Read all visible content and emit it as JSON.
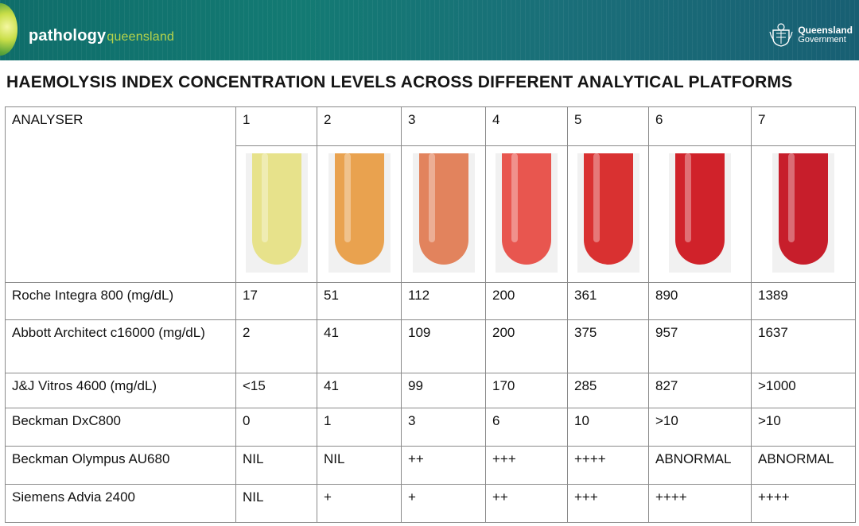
{
  "header": {
    "brand_main": "pathology",
    "brand_sub": "queensland",
    "gov_line1": "Queensland",
    "gov_line2": "Government"
  },
  "title": "HAEMOLYSIS INDEX CONCENTRATION LEVELS ACROSS DIFFERENT ANALYTICAL PLATFORMS",
  "table": {
    "corner_label": "ANALYSER",
    "levels": [
      "1",
      "2",
      "3",
      "4",
      "5",
      "6",
      "7"
    ],
    "tube_colors": [
      "#e7e28b",
      "#e9a24f",
      "#e2835d",
      "#e8564f",
      "#d93131",
      "#d0222a",
      "#c71e2b"
    ],
    "rows": [
      {
        "name": "Roche Integra 800 (mg/dL)",
        "values": [
          "17",
          "51",
          "112",
          "200",
          "361",
          "890",
          "1389"
        ]
      },
      {
        "name": "Abbott Architect c16000 (mg/dL)",
        "values": [
          "2",
          "41",
          "109",
          "200",
          "375",
          "957",
          "1637"
        ]
      },
      {
        "name": "J&J Vitros 4600 (mg/dL)",
        "values": [
          "<15",
          "41",
          "99",
          "170",
          "285",
          "827",
          ">1000"
        ]
      },
      {
        "name": "Beckman DxC800",
        "values": [
          "0",
          "1",
          "3",
          "6",
          "10",
          ">10",
          ">10"
        ]
      },
      {
        "name": "Beckman Olympus AU680",
        "values": [
          "NIL",
          "NIL",
          "++",
          "+++",
          "++++",
          "ABNORMAL",
          "ABNORMAL"
        ]
      },
      {
        "name": "Siemens Advia 2400",
        "values": [
          "NIL",
          "+",
          "+",
          "++",
          "+++",
          "++++",
          "++++"
        ]
      }
    ]
  }
}
